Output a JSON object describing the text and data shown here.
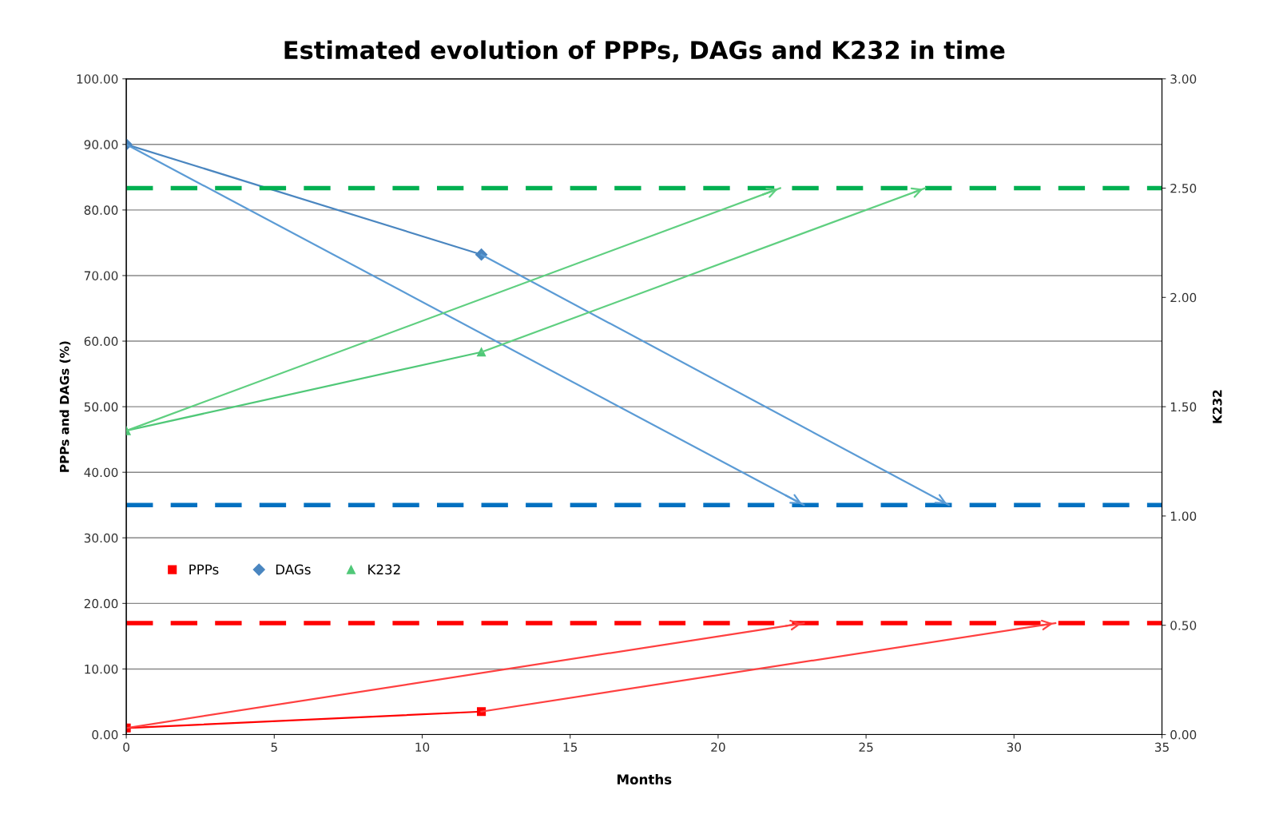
{
  "chart_data": {
    "type": "line",
    "title": "Estimated evolution of PPPs, DAGs and K232 in time",
    "xlabel": "Months",
    "ylabel": "PPPs and DAGs (%)",
    "y2label": "K232",
    "xlim": [
      0,
      35
    ],
    "xticks": [
      0,
      5,
      10,
      15,
      20,
      25,
      30,
      35
    ],
    "ylim": [
      0,
      100
    ],
    "yticks": [
      {
        "value": 0,
        "label": "0.00"
      },
      {
        "value": 10,
        "label": "10.00"
      },
      {
        "value": 20,
        "label": "20.00"
      },
      {
        "value": 30,
        "label": "30.00"
      },
      {
        "value": 40,
        "label": "40.00"
      },
      {
        "value": 50,
        "label": "50.00"
      },
      {
        "value": 60,
        "label": "60.00"
      },
      {
        "value": 70,
        "label": "70.00"
      },
      {
        "value": 80,
        "label": "80.00"
      },
      {
        "value": 90,
        "label": "90.00"
      },
      {
        "value": 100,
        "label": "100.00"
      }
    ],
    "y2lim": [
      0,
      3
    ],
    "y2ticks": [
      {
        "value": 0,
        "label": "0.00"
      },
      {
        "value": 0.5,
        "label": "0.50"
      },
      {
        "value": 1,
        "label": "1.00"
      },
      {
        "value": 1.5,
        "label": "1.50"
      },
      {
        "value": 2,
        "label": "2.00"
      },
      {
        "value": 2.5,
        "label": "2.50"
      },
      {
        "value": 3,
        "label": "3.00"
      }
    ],
    "grid": "y",
    "legend": "left",
    "series": [
      {
        "name": "PPPs",
        "color": "#ff0000",
        "marker": "square",
        "x": [
          0,
          12
        ],
        "values": [
          1.0,
          3.5
        ]
      },
      {
        "name": "DAGs",
        "color": "#4a86c0",
        "marker": "diamond",
        "x": [
          0,
          12
        ],
        "values": [
          90,
          73.2
        ]
      },
      {
        "name": "K232",
        "color": "#50c878",
        "marker": "triangle",
        "axis": "y2",
        "x": [
          0,
          12
        ],
        "values": [
          1.39,
          1.75
        ]
      },
      {
        "type": "line",
        "color": "#ff4040",
        "marker": "none",
        "x": [
          0,
          22.9
        ],
        "values": [
          1.0,
          17
        ]
      },
      {
        "type": "line",
        "color": "#ff4040",
        "marker": "none",
        "x": [
          12,
          31.4
        ],
        "values": [
          3.5,
          17
        ]
      },
      {
        "type": "line",
        "color": "#5b9bd5",
        "marker": "none",
        "x": [
          0,
          22.9
        ],
        "values": [
          90,
          35
        ]
      },
      {
        "type": "line",
        "color": "#5b9bd5",
        "marker": "none",
        "x": [
          12,
          27.8
        ],
        "values": [
          73.2,
          35
        ]
      },
      {
        "type": "line",
        "color": "#5fcf80",
        "marker": "none",
        "axis": "y2",
        "x": [
          0,
          22.1
        ],
        "values": [
          1.39,
          2.5
        ]
      },
      {
        "type": "line",
        "color": "#5fcf80",
        "marker": "none",
        "axis": "y2",
        "x": [
          12,
          27.0
        ],
        "values": [
          1.75,
          2.5
        ]
      }
    ],
    "ref_lines": [
      {
        "axis": "y",
        "value": 17,
        "color": "#ff0000",
        "line_style": "dashed"
      },
      {
        "axis": "y",
        "value": 35,
        "color": "#0070c0",
        "line_style": "dashed"
      },
      {
        "axis": "y2",
        "value": 2.5,
        "color": "#00b050",
        "line_style": "dashed"
      }
    ]
  }
}
